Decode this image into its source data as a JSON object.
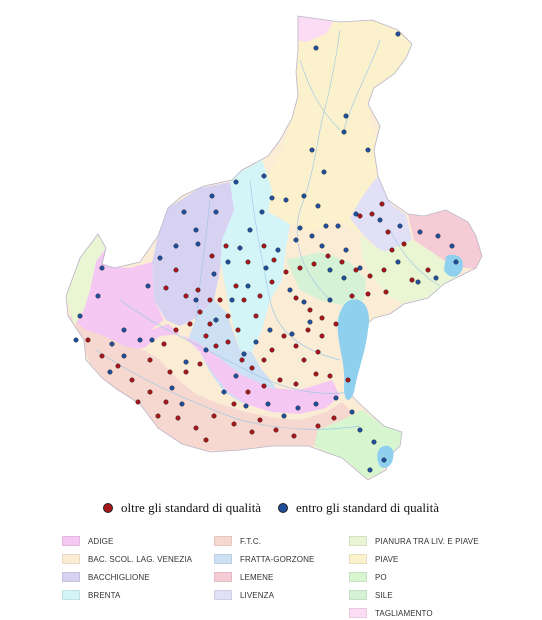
{
  "status_legend": [
    {
      "label": "oltre gli standard di qualità",
      "color": "#a4161a"
    },
    {
      "label": "entro gli standard di qualità",
      "color": "#1e4e9a"
    }
  ],
  "basins": [
    {
      "name": "ADIGE",
      "color": "#f4c8f2"
    },
    {
      "name": "BAC. SCOL. LAG. VENEZIA",
      "color": "#fbecd6"
    },
    {
      "name": "BACCHIGLIONE",
      "color": "#d8d2f2"
    },
    {
      "name": "BRENTA",
      "color": "#d4f5f8"
    },
    {
      "name": "F.T.C.",
      "color": "#f6d8d0"
    },
    {
      "name": "FRATTA-GORZONE",
      "color": "#cde0f4"
    },
    {
      "name": "LEMENE",
      "color": "#f5cbd6"
    },
    {
      "name": "LIVENZA",
      "color": "#e2e0f7"
    },
    {
      "name": "PIANURA TRA LIV. E PIAVE",
      "color": "#eaf5d4"
    },
    {
      "name": "PIAVE",
      "color": "#fbf1cc"
    },
    {
      "name": "PO",
      "color": "#d7f5cf"
    },
    {
      "name": "SILE",
      "color": "#d6f2d6"
    },
    {
      "name": "TAGLIAMENTO",
      "color": "#fbdcf4"
    }
  ],
  "colors": {
    "lagoon": "#8fd0ee",
    "river": "#9cc7e6",
    "outline": "#b9b4c8"
  }
}
